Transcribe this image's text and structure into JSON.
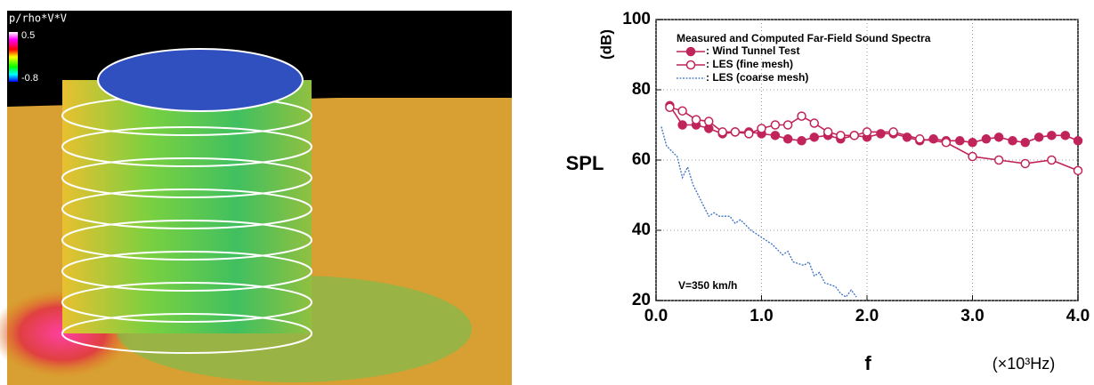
{
  "image_panel": {
    "colorbar_title": "p/rho*V*V",
    "colorbar_max_label": "0.5",
    "colorbar_min_label": "-0.8"
  },
  "chart_data": {
    "type": "line",
    "title": "Measured and Computed Far-Field Sound Spectra",
    "x_label": "f",
    "x_unit": "(×10³Hz)",
    "y_label": "SPL",
    "y_unit": "(dB)",
    "annotation": "V=350 km/h",
    "xlim": [
      0,
      4
    ],
    "ylim": [
      20,
      100
    ],
    "xticks": [
      {
        "value": 0,
        "label": "0.0"
      },
      {
        "value": 1,
        "label": "1.0"
      },
      {
        "value": 2,
        "label": "2.0"
      },
      {
        "value": 3,
        "label": "3.0"
      },
      {
        "value": 4,
        "label": "4.0"
      }
    ],
    "yticks": [
      20,
      40,
      60,
      80,
      100
    ],
    "grid": true,
    "series": [
      {
        "name": ": Wind Tunnel Test",
        "color": "#c0245a",
        "marker": "filled",
        "x": [
          0.13,
          0.25,
          0.38,
          0.5,
          0.63,
          0.75,
          0.88,
          1.0,
          1.13,
          1.25,
          1.38,
          1.5,
          1.63,
          1.75,
          1.88,
          2.0,
          2.13,
          2.25,
          2.38,
          2.5,
          2.63,
          2.75,
          2.88,
          3.0,
          3.13,
          3.25,
          3.38,
          3.5,
          3.63,
          3.75,
          3.88,
          4.0
        ],
        "values": [
          75.5,
          70,
          70,
          69,
          67.5,
          68,
          68,
          67.5,
          67,
          66,
          65.5,
          66.5,
          67,
          66,
          67,
          66.5,
          67.5,
          67.5,
          66.5,
          65.5,
          66,
          65.5,
          65.5,
          65,
          66,
          66.5,
          65.5,
          65,
          66.5,
          67,
          67,
          65.5
        ]
      },
      {
        "name": ": LES (fine mesh)",
        "color": "#c0245a",
        "marker": "open",
        "x": [
          0.13,
          0.25,
          0.38,
          0.5,
          0.63,
          0.75,
          0.88,
          1.0,
          1.13,
          1.25,
          1.38,
          1.5,
          1.63,
          1.75,
          1.88,
          2.0,
          2.25,
          2.5,
          2.75,
          3.0,
          3.25,
          3.5,
          3.75,
          4.0
        ],
        "values": [
          75,
          74,
          71.5,
          71,
          68,
          68,
          67.5,
          69,
          70,
          70,
          72.5,
          70.5,
          68,
          67,
          67,
          68,
          68,
          66,
          65,
          61,
          60,
          59,
          60,
          57
        ]
      },
      {
        "name": ": LES (coarse mesh)",
        "color": "#3a6fc4",
        "marker": "none",
        "x": [
          0.05,
          0.1,
          0.2,
          0.25,
          0.3,
          0.35,
          0.4,
          0.45,
          0.5,
          0.55,
          0.6,
          0.7,
          0.75,
          0.8,
          0.9,
          1.0,
          1.1,
          1.2,
          1.25,
          1.3,
          1.4,
          1.45,
          1.5,
          1.55,
          1.6,
          1.7,
          1.75,
          1.8,
          1.85,
          1.9
        ],
        "values": [
          69.5,
          64,
          61,
          55,
          58,
          53,
          50,
          47,
          44,
          45,
          44,
          44,
          42,
          43,
          40,
          38,
          36,
          33,
          34,
          31,
          30,
          31,
          27,
          28,
          25,
          24,
          22,
          21,
          23,
          21
        ]
      }
    ]
  }
}
